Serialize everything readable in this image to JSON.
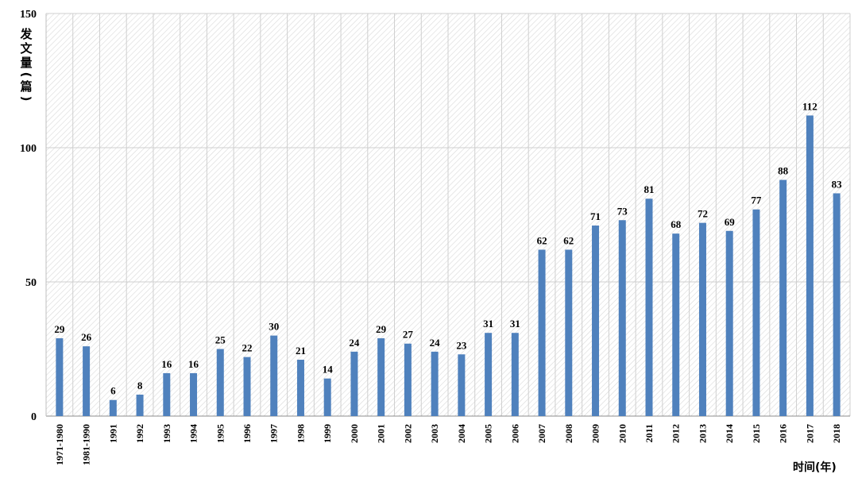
{
  "chart_data": {
    "type": "bar",
    "title": "",
    "xlabel": "时间(年)",
    "ylabel": "发文量(篇)",
    "ylim": [
      0,
      150
    ],
    "yticks": [
      0,
      50,
      100,
      150
    ],
    "grid": true,
    "legend": "none",
    "bar_color": "#4f81bd",
    "categories": [
      "1971-1980",
      "1981-1990",
      "1991",
      "1992",
      "1993",
      "1994",
      "1995",
      "1996",
      "1997",
      "1998",
      "1999",
      "2000",
      "2001",
      "2002",
      "2003",
      "2004",
      "2005",
      "2006",
      "2007",
      "2008",
      "2009",
      "2010",
      "2011",
      "2012",
      "2013",
      "2014",
      "2015",
      "2016",
      "2017",
      "2018"
    ],
    "values": [
      29,
      26,
      6,
      8,
      16,
      16,
      25,
      22,
      30,
      21,
      14,
      24,
      29,
      27,
      24,
      23,
      31,
      31,
      62,
      62,
      71,
      73,
      81,
      68,
      72,
      69,
      77,
      88,
      112,
      83
    ]
  }
}
